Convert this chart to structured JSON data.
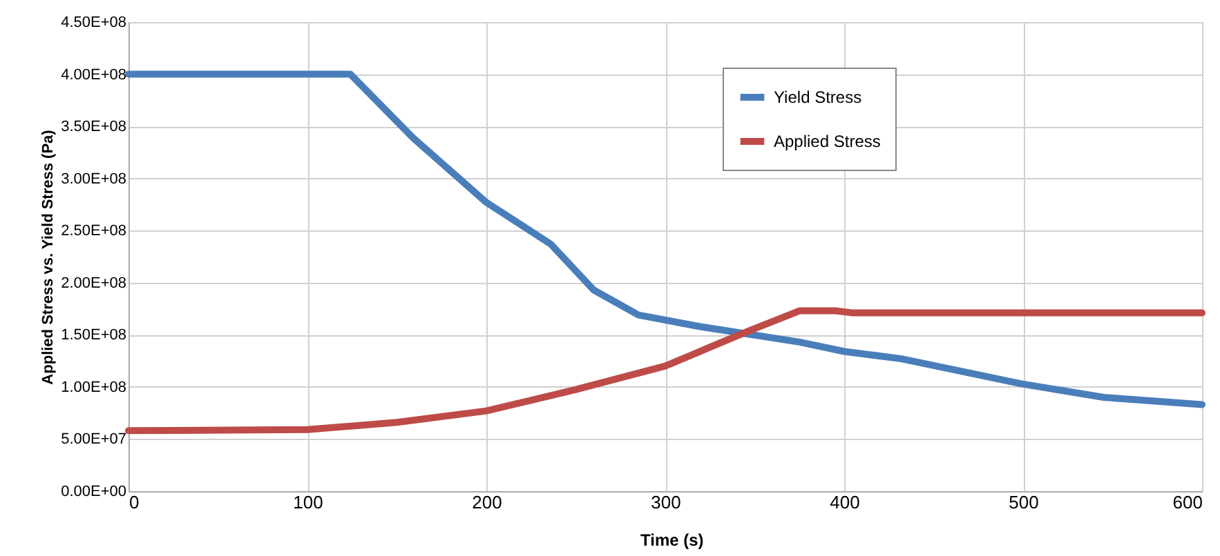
{
  "chart_data": {
    "type": "line",
    "xlabel": "Time (s)",
    "ylabel": "Applied Stress vs. Yield Stress (Pa)",
    "xlim": [
      0,
      600
    ],
    "xticks": [
      0,
      100,
      200,
      300,
      400,
      500,
      600
    ],
    "ylim": [
      0,
      450000000
    ],
    "yticks": [
      {
        "value": 0,
        "label": "0.00E+00"
      },
      {
        "value": 50000000,
        "label": "5.00E+07"
      },
      {
        "value": 100000000,
        "label": "1.00E+08"
      },
      {
        "value": 150000000,
        "label": "1.50E+08"
      },
      {
        "value": 200000000,
        "label": "2.00E+08"
      },
      {
        "value": 250000000,
        "label": "2.50E+08"
      },
      {
        "value": 300000000,
        "label": "3.00E+08"
      },
      {
        "value": 350000000,
        "label": "3.50E+08"
      },
      {
        "value": 400000000,
        "label": "4.00E+08"
      },
      {
        "value": 450000000,
        "label": "4.50E+08"
      }
    ],
    "grid": true,
    "legend": "top right",
    "marker": "none",
    "line_style": "solid",
    "series": [
      {
        "name": "Yield Stress",
        "color": "#4a7ebb",
        "x": [
          0,
          124,
          159,
          200,
          236,
          260,
          285,
          319,
          375,
          400,
          432,
          499,
          545,
          600
        ],
        "values": [
          400000000,
          400000000,
          339000000,
          277000000,
          237000000,
          193000000,
          169000000,
          158000000,
          143000000,
          134000000,
          127000000,
          103000000,
          90000000,
          83000000
        ]
      },
      {
        "name": "Applied Stress",
        "color": "#be4b48",
        "x": [
          0,
          100,
          150,
          200,
          249,
          300,
          347,
          375,
          395,
          405,
          600
        ],
        "values": [
          58000000,
          59000000,
          66000000,
          77000000,
          97000000,
          120000000,
          154000000,
          173000000,
          173000000,
          171000000,
          171000000
        ]
      }
    ]
  }
}
